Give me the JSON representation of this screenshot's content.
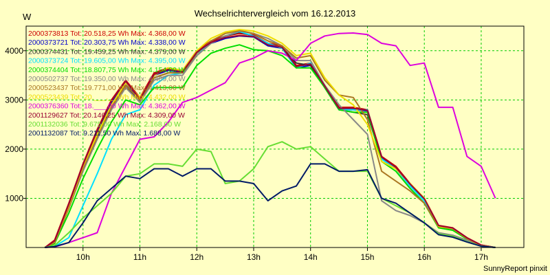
{
  "chart_data": {
    "type": "line",
    "title": "Wechselrichtervergleich vom 16.12.2013",
    "ylabel": "W",
    "xlabel": "",
    "footer": "SunnyReport pinxit",
    "xlim": [
      9.0,
      17.75
    ],
    "ylim": [
      0,
      4500
    ],
    "grid": true,
    "legend_position": "top-left",
    "x_ticks": [
      {
        "value": 10,
        "label": "10h"
      },
      {
        "value": 11,
        "label": "11h"
      },
      {
        "value": 12,
        "label": "12h"
      },
      {
        "value": 13,
        "label": "13h"
      },
      {
        "value": 14,
        "label": "14h"
      },
      {
        "value": 15,
        "label": "15h"
      },
      {
        "value": 16,
        "label": "16h"
      },
      {
        "value": 17,
        "label": "17h"
      }
    ],
    "y_ticks": [
      {
        "value": 1000,
        "label": "1000"
      },
      {
        "value": 2000,
        "label": "2000"
      },
      {
        "value": 3000,
        "label": "3000"
      },
      {
        "value": 4000,
        "label": "4000"
      }
    ],
    "series": [
      {
        "name": "2000373813",
        "legend": "2000373813 Tot: 20.518,25 Wh Max: 4.368,00 W",
        "color": "#cc0000",
        "x": [
          9.33,
          9.5,
          9.75,
          10.0,
          10.25,
          10.5,
          10.75,
          11.0,
          11.25,
          11.5,
          11.75,
          12.0,
          12.25,
          12.5,
          12.75,
          13.0,
          13.25,
          13.5,
          13.75,
          14.0,
          14.25,
          14.5,
          14.75,
          15.0,
          15.25,
          15.5,
          15.75,
          16.0,
          16.25,
          16.5,
          16.75,
          17.0,
          17.25
        ],
        "y": [
          0,
          150,
          900,
          1700,
          2400,
          3000,
          3400,
          3050,
          3550,
          3650,
          3600,
          4000,
          4200,
          4300,
          4350,
          4320,
          4150,
          4100,
          3700,
          3750,
          3300,
          2850,
          2850,
          2800,
          1850,
          1650,
          1300,
          1000,
          450,
          400,
          200,
          50,
          0
        ]
      },
      {
        "name": "2000373721",
        "legend": "2000373721 Tot: 20.303,75 Wh Max: 4.338,00 W",
        "color": "#0000cc",
        "x": [
          9.33,
          9.5,
          9.75,
          10.0,
          10.25,
          10.5,
          10.75,
          11.0,
          11.25,
          11.5,
          11.75,
          12.0,
          12.25,
          12.5,
          12.75,
          13.0,
          13.25,
          13.5,
          13.75,
          14.0,
          14.25,
          14.5,
          14.75,
          15.0,
          15.25,
          15.5,
          15.75,
          16.0,
          16.25,
          16.5,
          16.75,
          17.0,
          17.25
        ],
        "y": [
          0,
          120,
          850,
          1650,
          2350,
          2950,
          3350,
          3000,
          3500,
          3600,
          3550,
          3950,
          4150,
          4250,
          4300,
          4280,
          4100,
          4050,
          3650,
          3700,
          3250,
          2800,
          2800,
          2780,
          1830,
          1620,
          1280,
          980,
          440,
          390,
          190,
          45,
          0
        ]
      },
      {
        "name": "2000374431",
        "legend": "2000374431 Tot: 19.459,25 Wh Max: 4.379,00 W",
        "color": "#333333",
        "x": [
          9.33,
          9.5,
          9.75,
          10.0,
          10.25,
          10.5,
          10.75,
          11.0,
          11.25,
          11.5,
          11.75,
          12.0,
          12.25,
          12.5,
          12.75,
          13.0,
          13.25,
          13.5,
          13.75,
          14.0,
          14.25,
          14.5,
          14.75,
          15.0,
          15.25,
          15.5,
          15.75,
          16.0,
          16.25,
          16.5,
          16.75,
          17.0,
          17.25
        ],
        "y": [
          0,
          100,
          800,
          1600,
          2250,
          2850,
          3300,
          2950,
          3450,
          3550,
          3550,
          3900,
          4150,
          4300,
          4380,
          4300,
          4150,
          4050,
          3750,
          3700,
          3250,
          2800,
          2750,
          2700,
          1800,
          1600,
          1250,
          950,
          430,
          380,
          180,
          40,
          0
        ]
      },
      {
        "name": "2000373724",
        "legend": "2000373724 Tot: 19.605,00 Wh Max: 4.395,00 W",
        "color": "#00e0ff",
        "x": [
          9.33,
          9.5,
          9.75,
          10.0,
          10.25,
          10.5,
          10.75,
          11.0,
          11.25,
          11.5,
          11.75,
          12.0,
          12.25,
          12.5,
          12.75,
          13.0,
          13.25,
          13.5,
          13.75,
          14.0,
          14.25,
          14.5,
          14.75,
          15.0,
          15.25,
          15.5,
          15.75,
          16.0,
          16.25,
          16.5,
          16.75,
          17.0,
          17.25
        ],
        "y": [
          0,
          20,
          200,
          850,
          1500,
          2200,
          2700,
          2800,
          3300,
          3500,
          3550,
          3950,
          4150,
          4300,
          4390,
          4300,
          4150,
          4050,
          3650,
          3750,
          3300,
          2800,
          2800,
          2800,
          1800,
          1600,
          1250,
          950,
          430,
          380,
          180,
          40,
          0
        ]
      },
      {
        "name": "2000374404",
        "legend": "2000374404 Tot: 18.807,75 Wh Max: 4.154,00 W",
        "color": "#00dd00",
        "x": [
          9.33,
          9.5,
          9.75,
          10.0,
          10.25,
          10.5,
          10.75,
          11.0,
          11.25,
          11.5,
          11.75,
          12.0,
          12.25,
          12.5,
          12.75,
          13.0,
          13.25,
          13.5,
          13.75,
          14.0,
          14.25,
          14.5,
          14.75,
          15.0,
          15.25,
          15.5,
          15.75,
          16.0,
          16.25,
          16.5,
          16.75,
          17.0,
          17.25
        ],
        "y": [
          0,
          80,
          700,
          1400,
          2000,
          2550,
          3000,
          2900,
          3250,
          3250,
          3250,
          3700,
          3950,
          4050,
          4120,
          4020,
          4000,
          3900,
          3650,
          3650,
          3250,
          2800,
          2750,
          2750,
          1750,
          1550,
          1200,
          900,
          400,
          350,
          170,
          35,
          0
        ]
      },
      {
        "name": "2000502737",
        "legend": "2000502737 Tot: 19.350,00 Wh Max: 4.409,00 W",
        "color": "#888888",
        "x": [
          9.33,
          9.5,
          9.75,
          10.0,
          10.25,
          10.5,
          10.75,
          11.0,
          11.25,
          11.5,
          11.75,
          12.0,
          12.25,
          12.5,
          12.75,
          13.0,
          13.25,
          13.5,
          13.75,
          14.0,
          14.25,
          14.5,
          14.75,
          15.0,
          15.25,
          15.5,
          15.75,
          16.0,
          16.25,
          16.5,
          16.75,
          17.0,
          17.25
        ],
        "y": [
          0,
          100,
          800,
          1550,
          2200,
          2800,
          3250,
          2950,
          3400,
          3500,
          3500,
          3900,
          4150,
          4300,
          4400,
          4350,
          4250,
          4100,
          3800,
          3800,
          3300,
          2900,
          2600,
          2300,
          950,
          750,
          650,
          500,
          300,
          250,
          150,
          30,
          0
        ]
      },
      {
        "name": "2000523437",
        "legend": "2000523437 Tot: 19.771,00 Wh Max: 4.413,00 W",
        "color": "#aa7722",
        "x": [
          9.33,
          9.5,
          9.75,
          10.0,
          10.25,
          10.5,
          10.75,
          11.0,
          11.25,
          11.5,
          11.75,
          12.0,
          12.25,
          12.5,
          12.75,
          13.0,
          13.25,
          13.5,
          13.75,
          14.0,
          14.25,
          14.5,
          14.75,
          15.0,
          15.25,
          15.5,
          15.75,
          16.0,
          16.25,
          16.5,
          16.75,
          17.0,
          17.25
        ],
        "y": [
          0,
          100,
          800,
          1600,
          2250,
          2850,
          3300,
          3000,
          3450,
          3550,
          3550,
          3950,
          4200,
          4350,
          4410,
          4350,
          4200,
          4100,
          3850,
          3900,
          3400,
          3100,
          3050,
          2600,
          1550,
          1350,
          1150,
          900,
          420,
          380,
          180,
          40,
          0
        ]
      },
      {
        "name": "2000523439",
        "legend": "2000523439 Tot: 20.___,__ Wh Max: 4.432,00 W",
        "color": "#eedd00",
        "x": [
          9.33,
          9.5,
          9.75,
          10.0,
          10.25,
          10.5,
          10.75,
          11.0,
          11.25,
          11.5,
          11.75,
          12.0,
          12.25,
          12.5,
          12.75,
          13.0,
          13.25,
          13.5,
          13.75,
          14.0,
          14.25,
          14.5,
          14.75,
          15.0,
          15.25,
          15.5,
          15.75,
          16.0,
          16.25,
          16.5,
          16.75,
          17.0,
          17.25
        ],
        "y": [
          0,
          120,
          850,
          1650,
          2300,
          2900,
          3350,
          3050,
          3500,
          3650,
          3600,
          4000,
          4250,
          4380,
          4430,
          4400,
          4300,
          4150,
          3900,
          3950,
          3450,
          3100,
          2900,
          2500,
          1750,
          1600,
          1300,
          1000,
          430,
          390,
          190,
          45,
          0
        ]
      },
      {
        "name": "2000376360",
        "legend": "2000376360 Tot: 18.___,00 Wh Max: 4.362,00 W",
        "color": "#dd00dd",
        "x": [
          9.33,
          9.5,
          9.75,
          10.0,
          10.25,
          10.5,
          10.75,
          11.0,
          11.25,
          11.5,
          11.75,
          12.0,
          12.25,
          12.5,
          12.75,
          13.0,
          13.25,
          13.5,
          13.75,
          14.0,
          14.25,
          14.5,
          14.75,
          15.0,
          15.25,
          15.5,
          15.75,
          16.0,
          16.25,
          16.5,
          16.75,
          17.0,
          17.25
        ],
        "y": [
          0,
          10,
          100,
          200,
          300,
          1100,
          1650,
          2200,
          2250,
          2550,
          2950,
          3050,
          3200,
          3350,
          3750,
          3850,
          4000,
          3950,
          3800,
          4150,
          4300,
          4350,
          4360,
          4330,
          4150,
          4100,
          3700,
          3750,
          2850,
          2850,
          1850,
          1650,
          1000
        ]
      },
      {
        "name": "2001129627",
        "legend": "2001129627 Tot: 20.146,25 Wh Max: 4.309,00 W",
        "color": "#990033",
        "x": [
          9.33,
          9.5,
          9.75,
          10.0,
          10.25,
          10.5,
          10.75,
          11.0,
          11.25,
          11.5,
          11.75,
          12.0,
          12.25,
          12.5,
          12.75,
          13.0,
          13.25,
          13.5,
          13.75,
          14.0,
          14.25,
          14.5,
          14.75,
          15.0,
          15.25,
          15.5,
          15.75,
          16.0,
          16.25,
          16.5,
          16.75,
          17.0,
          17.25
        ],
        "y": [
          0,
          130,
          880,
          1680,
          2380,
          2980,
          3380,
          3020,
          3520,
          3620,
          3570,
          3970,
          4170,
          4270,
          4310,
          4290,
          4120,
          4070,
          3680,
          3730,
          3280,
          2830,
          2830,
          2790,
          1840,
          1630,
          1290,
          990,
          445,
          395,
          195,
          48,
          0
        ]
      },
      {
        "name": "2001132036",
        "legend": "2001132036 Tot: 9.675,00 Wh Max: 2.168,00 W",
        "color": "#66dd33",
        "x": [
          9.33,
          9.5,
          9.75,
          10.0,
          10.25,
          10.5,
          10.75,
          11.0,
          11.25,
          11.5,
          11.75,
          12.0,
          12.25,
          12.5,
          12.75,
          13.0,
          13.25,
          13.5,
          13.75,
          14.0,
          14.25,
          14.5,
          14.75,
          15.0,
          15.25,
          15.5,
          15.75,
          16.0,
          16.25,
          16.5,
          16.75,
          17.0,
          17.25
        ],
        "y": [
          0,
          40,
          300,
          600,
          850,
          1100,
          1450,
          1500,
          1700,
          1700,
          1650,
          2000,
          1950,
          1300,
          1350,
          1600,
          2050,
          2150,
          2000,
          2050,
          1800,
          1550,
          1550,
          1550,
          1000,
          850,
          700,
          500,
          280,
          230,
          120,
          30,
          0
        ]
      },
      {
        "name": "2001132087",
        "legend": "2001132087 Tot: 9.211,50 Wh Max: 1.688,00 W",
        "color": "#001a66",
        "x": [
          9.33,
          9.5,
          9.75,
          10.0,
          10.25,
          10.5,
          10.75,
          11.0,
          11.25,
          11.5,
          11.75,
          12.0,
          12.25,
          12.5,
          12.75,
          13.0,
          13.25,
          13.5,
          13.75,
          14.0,
          14.25,
          14.5,
          14.75,
          15.0,
          15.25,
          15.5,
          15.75,
          16.0,
          16.25,
          16.5,
          16.75,
          17.0,
          17.25
        ],
        "y": [
          0,
          20,
          100,
          500,
          950,
          1200,
          1450,
          1400,
          1600,
          1600,
          1450,
          1600,
          1600,
          1350,
          1350,
          1300,
          950,
          1150,
          1250,
          1700,
          1700,
          1550,
          1550,
          1580,
          1000,
          900,
          700,
          500,
          260,
          210,
          110,
          25,
          0
        ]
      }
    ]
  }
}
